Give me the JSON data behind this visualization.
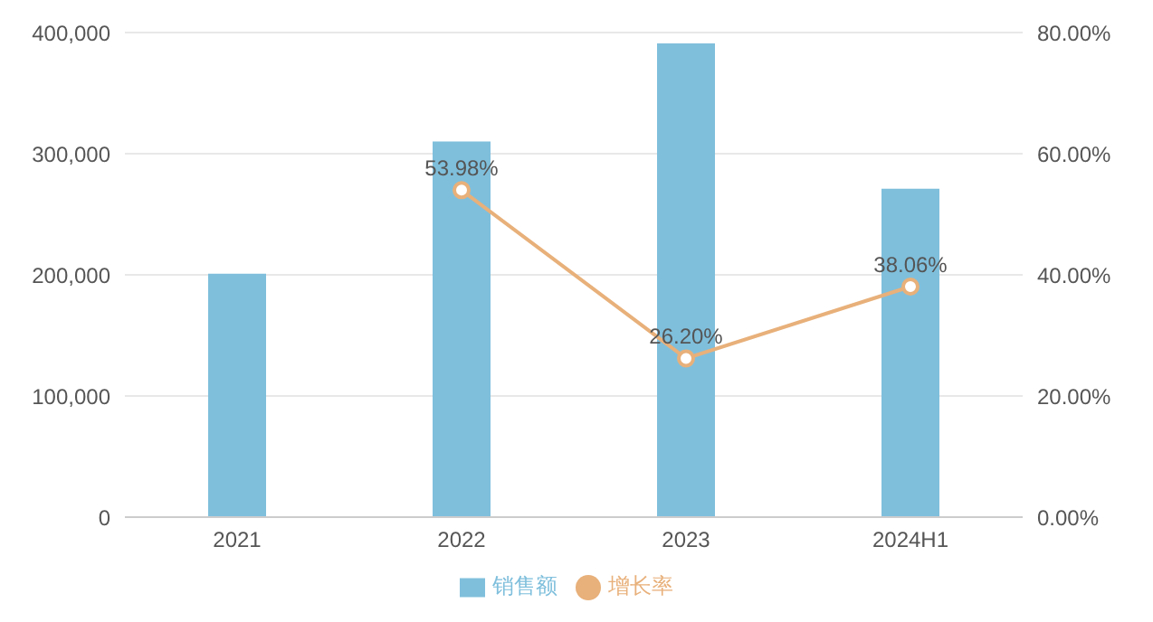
{
  "chart_data": {
    "type": "bar",
    "categories": [
      "2021",
      "2022",
      "2023",
      "2024H1"
    ],
    "series": [
      {
        "name": "销售额",
        "color": "#7fbfdc",
        "values": [
          201000,
          310000,
          391000,
          271000
        ]
      },
      {
        "name": "增长率",
        "type": "line",
        "axis": "y2",
        "color": "#e8b07a",
        "marker": "circle",
        "values": [
          null,
          53.98,
          26.2,
          38.06
        ],
        "value_labels": [
          null,
          "53.98%",
          "26.20%",
          "38.06%"
        ]
      }
    ],
    "ylim": [
      0,
      400000
    ],
    "yticks": [
      {
        "value": 0,
        "label": "0"
      },
      {
        "value": 100000,
        "label": "100,000"
      },
      {
        "value": 200000,
        "label": "200,000"
      },
      {
        "value": 300000,
        "label": "300,000"
      },
      {
        "value": 400000,
        "label": "400,000"
      }
    ],
    "y2lim": [
      0,
      80
    ],
    "y2ticks": [
      {
        "value": 0,
        "label": "0.00%"
      },
      {
        "value": 20,
        "label": "20.00%"
      },
      {
        "value": 40,
        "label": "40.00%"
      },
      {
        "value": 60,
        "label": "60.00%"
      },
      {
        "value": 80,
        "label": "80.00%"
      }
    ],
    "grid": "y",
    "legend": "bottom"
  }
}
